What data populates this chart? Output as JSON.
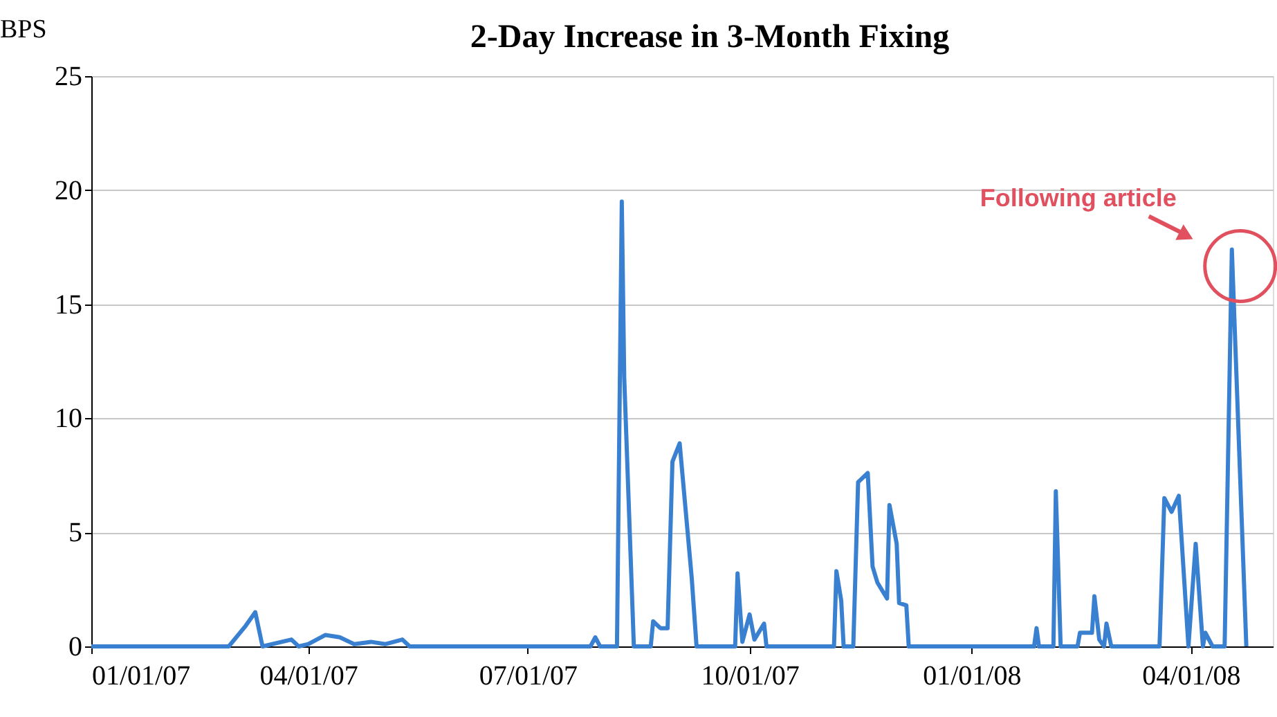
{
  "chart_data": {
    "type": "line",
    "title": "2-Day Increase in 3-Month Fixing",
    "ylabel": "BPS",
    "x": [
      "2007-01-01",
      "2007-02-27",
      "2007-03-06",
      "2007-03-10",
      "2007-03-13",
      "2007-03-25",
      "2007-03-28",
      "2007-04-01",
      "2007-04-08",
      "2007-04-14",
      "2007-04-20",
      "2007-04-27",
      "2007-05-03",
      "2007-05-10",
      "2007-05-13",
      "2007-07-27",
      "2007-07-29",
      "2007-07-31",
      "2007-08-07",
      "2007-08-09",
      "2007-08-10",
      "2007-08-14",
      "2007-08-21",
      "2007-08-22",
      "2007-08-25",
      "2007-08-28",
      "2007-08-30",
      "2007-09-02",
      "2007-09-07",
      "2007-09-09",
      "2007-09-25",
      "2007-09-26",
      "2007-09-28",
      "2007-10-01",
      "2007-10-03",
      "2007-10-07",
      "2007-10-08",
      "2007-11-05",
      "2007-11-06",
      "2007-11-08",
      "2007-11-09",
      "2007-11-13",
      "2007-11-15",
      "2007-11-19",
      "2007-11-21",
      "2007-11-23",
      "2007-11-27",
      "2007-11-28",
      "2007-12-01",
      "2007-12-02",
      "2007-12-05",
      "2007-12-06",
      "2008-01-27",
      "2008-01-28",
      "2008-01-29",
      "2008-02-04",
      "2008-02-05",
      "2008-02-07",
      "2008-02-14",
      "2008-02-15",
      "2008-02-20",
      "2008-02-21",
      "2008-02-23",
      "2008-02-25",
      "2008-02-26",
      "2008-02-28",
      "2008-03-19",
      "2008-03-21",
      "2008-03-24",
      "2008-03-27",
      "2008-03-31",
      "2008-04-03",
      "2008-04-06",
      "2008-04-07",
      "2008-04-10",
      "2008-04-15",
      "2008-04-18",
      "2008-04-24"
    ],
    "series": [
      {
        "color": "#3a80d0",
        "values": [
          0,
          0,
          0.9,
          1.5,
          0,
          0.3,
          0,
          0.1,
          0.5,
          0.4,
          0.1,
          0.2,
          0.1,
          0.3,
          0,
          0,
          0.4,
          0,
          0,
          19.5,
          11.8,
          0,
          0,
          1.1,
          0.8,
          0.8,
          8.1,
          8.9,
          3,
          0,
          0,
          3.2,
          0.2,
          1.4,
          0.3,
          1.0,
          0,
          0,
          3.3,
          2.0,
          0,
          0,
          7.2,
          7.6,
          3.5,
          2.8,
          2.1,
          6.2,
          4.5,
          1.9,
          1.8,
          0,
          0,
          0.8,
          0,
          0,
          6.8,
          0,
          0,
          0.6,
          0.6,
          2.2,
          0.3,
          0,
          1.0,
          0,
          0,
          6.5,
          5.9,
          6.6,
          0,
          4.5,
          0,
          0.6,
          0,
          0,
          17.4,
          0
        ]
      }
    ],
    "xlim": [
      "2007-01-01",
      "2008-05-05"
    ],
    "xticks": [
      {
        "value": "2007-01-01",
        "label": "01/01/07"
      },
      {
        "value": "2007-04-01",
        "label": "04/01/07"
      },
      {
        "value": "2007-07-01",
        "label": "07/01/07"
      },
      {
        "value": "2007-10-01",
        "label": "10/01/07"
      },
      {
        "value": "2008-01-01",
        "label": "01/01/08"
      },
      {
        "value": "2008-04-01",
        "label": "04/01/08"
      }
    ],
    "ylim": [
      0,
      25
    ],
    "yticks": [
      0,
      5,
      10,
      15,
      20,
      25
    ],
    "grid": "y",
    "marker": "none",
    "line_style": "solid",
    "annotations": [
      {
        "text": "Following article",
        "x": "2008-04-18",
        "y": 17.4
      }
    ]
  }
}
